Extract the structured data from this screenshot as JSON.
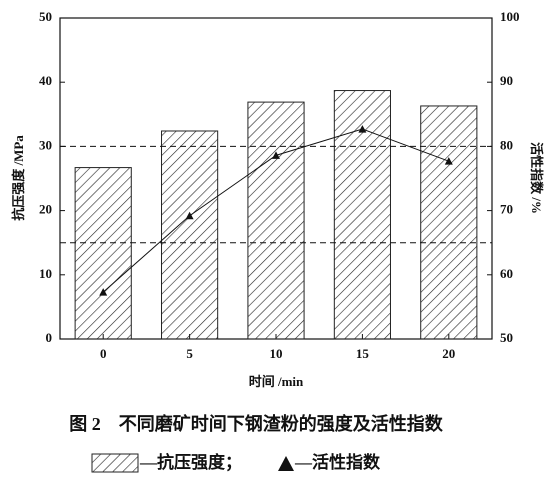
{
  "chart_data": {
    "type": "bar",
    "title": "图 2　不同磨矿时间下钢渣粉的强度及活性指数",
    "x_label": "时间 /min",
    "y_label": "抗压强度 /MPa",
    "y2_label": "活性指数 /%",
    "categories": [
      "0",
      "5",
      "10",
      "15",
      "20"
    ],
    "series": [
      {
        "name": "—抗压强度；",
        "type": "bar",
        "color": "#222222",
        "values": [
          26.7,
          32.4,
          36.9,
          38.7,
          36.3
        ]
      },
      {
        "name": "—活性指数",
        "type": "line",
        "axis": "y2",
        "color": "#111111",
        "values": [
          57.3,
          69.2,
          78.6,
          82.7,
          77.7
        ]
      }
    ],
    "ylim": [
      0,
      50
    ],
    "yticks": [
      0,
      10,
      20,
      30,
      40,
      50
    ],
    "y2lim": [
      50,
      100
    ],
    "y2ticks": [
      50,
      60,
      70,
      80,
      90,
      100
    ],
    "reference_lines_y2": [
      65,
      80
    ]
  }
}
